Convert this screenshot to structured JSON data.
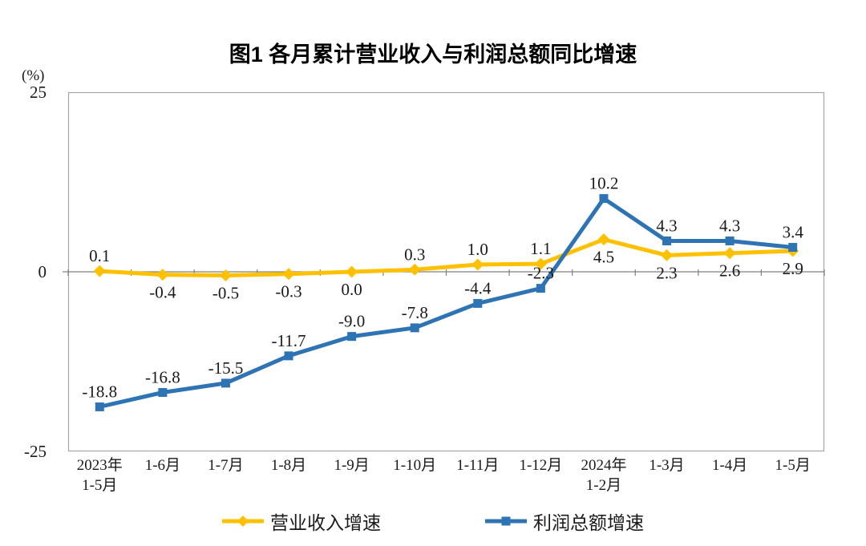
{
  "title": "图1  各月累计营业收入与利润总额同比增速",
  "axis_unit": "(%)",
  "colors": {
    "frame": "#a6a6a6",
    "zero_line": "#808080",
    "tick": "#808080",
    "revenue_series": "#FFC000",
    "profit_series": "#2E74B5",
    "text": "#1a1a1a"
  },
  "chart_data": {
    "type": "line",
    "title": "图1  各月累计营业收入与利润总额同比增速",
    "ylabel": "(%)",
    "xlabel": "",
    "ylim": [
      -25,
      25
    ],
    "y_ticks": [
      25,
      0,
      -25
    ],
    "grid": false,
    "legend_position": "bottom",
    "categories": [
      "2023年\n1-5月",
      "1-6月",
      "1-7月",
      "1-8月",
      "1-9月",
      "1-10月",
      "1-11月",
      "1-12月",
      "2024年\n1-2月",
      "1-3月",
      "1-4月",
      "1-5月"
    ],
    "series": [
      {
        "name": "营业收入增速",
        "color": "#FFC000",
        "marker": "diamond",
        "values": [
          0.1,
          -0.4,
          -0.5,
          -0.3,
          0.0,
          0.3,
          1.0,
          1.1,
          4.5,
          2.3,
          2.6,
          2.9
        ],
        "label_positions": [
          "above",
          "below",
          "below",
          "below",
          "below",
          "above",
          "above",
          "above",
          "below",
          "below",
          "below",
          "below"
        ]
      },
      {
        "name": "利润总额增速",
        "color": "#2E74B5",
        "marker": "square",
        "values": [
          -18.8,
          -16.8,
          -15.5,
          -11.7,
          -9.0,
          -7.8,
          -4.4,
          -2.3,
          10.2,
          4.3,
          4.3,
          3.4
        ],
        "label_positions": [
          "above",
          "above",
          "above",
          "above",
          "above",
          "above",
          "above",
          "above",
          "above",
          "above",
          "above",
          "above"
        ]
      }
    ]
  }
}
